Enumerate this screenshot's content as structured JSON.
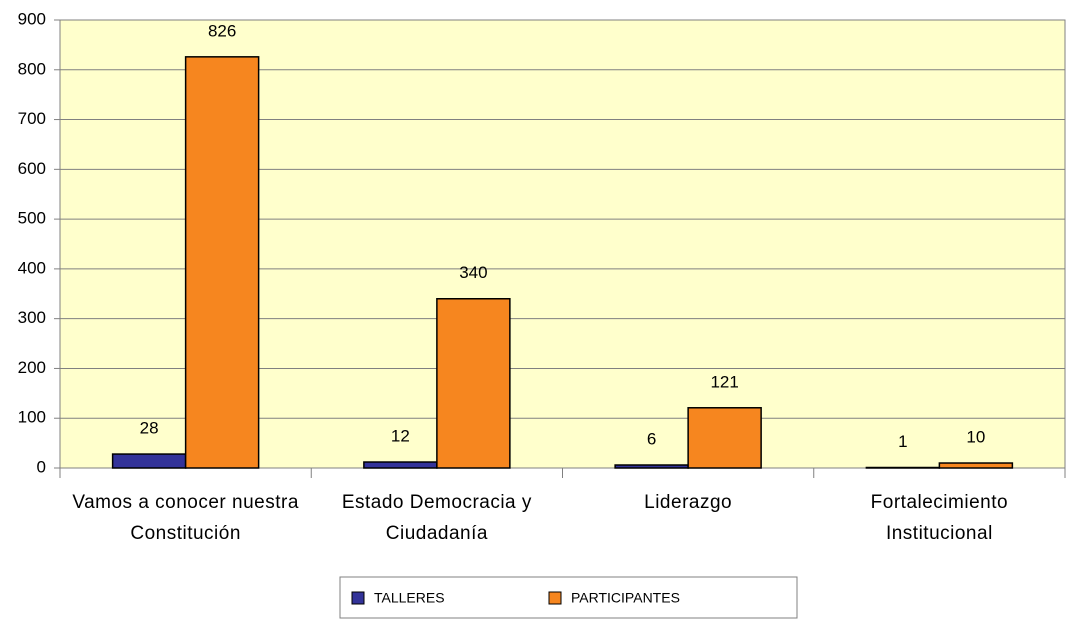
{
  "chart_data": {
    "type": "bar",
    "categories": [
      "Vamos a conocer nuestra Constitución",
      "Estado Democracia y Ciudadanía",
      "Liderazgo",
      "Fortalecimiento Institucional"
    ],
    "series": [
      {
        "name": "TALLERES",
        "color": "#333399",
        "values": [
          28,
          12,
          6,
          1
        ]
      },
      {
        "name": "PARTICIPANTES",
        "color": "#f6861f",
        "values": [
          826,
          340,
          121,
          10
        ]
      }
    ],
    "ylim": [
      0,
      900
    ],
    "yticks": [
      0,
      100,
      200,
      300,
      400,
      500,
      600,
      700,
      800,
      900
    ],
    "grid": true,
    "legend": "bottom",
    "plot_background": "#ffffcc"
  }
}
